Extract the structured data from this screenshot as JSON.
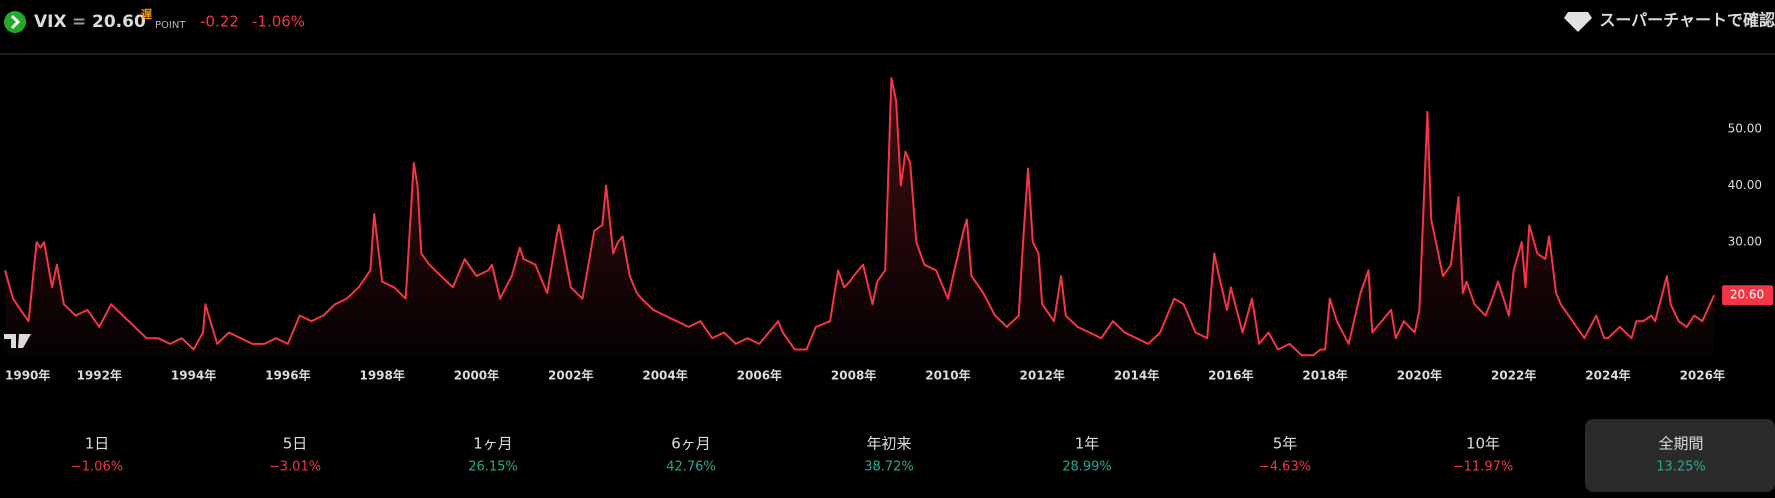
{
  "header": {
    "symbol": "VIX",
    "separator": "=",
    "price": "20.60",
    "delay_badge": "遅",
    "unit": "POINT",
    "change": "-0.22",
    "change_percent": "-1.06%",
    "action": "スーパーチャートで確認"
  },
  "chart_data": {
    "type": "line",
    "color": "#f23645",
    "x": [
      1990.0,
      1990.17,
      1990.33,
      1990.5,
      1990.67,
      1990.75,
      1990.83,
      1991.0,
      1991.1,
      1991.25,
      1991.5,
      1991.75,
      1992.0,
      1992.25,
      1992.5,
      1992.75,
      1993.0,
      1993.25,
      1993.5,
      1993.75,
      1994.0,
      1994.2,
      1994.25,
      1994.5,
      1994.75,
      1995.0,
      1995.25,
      1995.5,
      1995.75,
      1996.0,
      1996.25,
      1996.5,
      1996.75,
      1997.0,
      1997.25,
      1997.5,
      1997.75,
      1997.83,
      1998.0,
      1998.25,
      1998.5,
      1998.67,
      1998.75,
      1998.83,
      1999.0,
      1999.25,
      1999.5,
      1999.75,
      2000.0,
      2000.25,
      2000.33,
      2000.5,
      2000.75,
      2000.92,
      2001.0,
      2001.25,
      2001.5,
      2001.7,
      2001.75,
      2002.0,
      2002.25,
      2002.5,
      2002.67,
      2002.75,
      2002.9,
      2003.0,
      2003.1,
      2003.25,
      2003.4,
      2003.5,
      2003.75,
      2004.0,
      2004.25,
      2004.5,
      2004.75,
      2005.0,
      2005.25,
      2005.5,
      2005.75,
      2006.0,
      2006.4,
      2006.5,
      2006.75,
      2007.0,
      2007.2,
      2007.5,
      2007.67,
      2007.8,
      2007.92,
      2008.0,
      2008.2,
      2008.4,
      2008.5,
      2008.67,
      2008.8,
      2008.9,
      2009.0,
      2009.1,
      2009.2,
      2009.33,
      2009.5,
      2009.75,
      2010.0,
      2010.33,
      2010.4,
      2010.5,
      2010.75,
      2011.0,
      2011.25,
      2011.5,
      2011.6,
      2011.7,
      2011.8,
      2011.92,
      2012.0,
      2012.25,
      2012.4,
      2012.5,
      2012.75,
      2013.0,
      2013.25,
      2013.5,
      2013.75,
      2014.0,
      2014.25,
      2014.5,
      2014.8,
      2015.0,
      2015.25,
      2015.5,
      2015.65,
      2015.75,
      2015.92,
      2016.0,
      2016.25,
      2016.45,
      2016.6,
      2016.8,
      2017.0,
      2017.25,
      2017.5,
      2017.75,
      2017.9,
      2018.0,
      2018.1,
      2018.25,
      2018.5,
      2018.75,
      2018.92,
      2019.0,
      2019.4,
      2019.5,
      2019.67,
      2019.9,
      2020.0,
      2020.17,
      2020.25,
      2020.4,
      2020.5,
      2020.67,
      2020.83,
      2020.92,
      2021.0,
      2021.17,
      2021.4,
      2021.5,
      2021.67,
      2021.9,
      2022.0,
      2022.17,
      2022.25,
      2022.33,
      2022.5,
      2022.67,
      2022.75,
      2022.9,
      2023.0,
      2023.25,
      2023.5,
      2023.75,
      2023.92,
      2024.0,
      2024.25,
      2024.5,
      2024.6,
      2024.75,
      2024.92,
      2025.0,
      2025.25,
      2025.33,
      2025.5,
      2025.67,
      2025.83,
      2026.0,
      2026.25
    ],
    "values": [
      25,
      20,
      18,
      16,
      30,
      29,
      30,
      22,
      26,
      19,
      17,
      18,
      15,
      19,
      17,
      15,
      13,
      13,
      12,
      13,
      11,
      14,
      19,
      12,
      14,
      13,
      12,
      12,
      13,
      12,
      17,
      16,
      17,
      19,
      20,
      22,
      25,
      35,
      23,
      22,
      20,
      44,
      40,
      28,
      26,
      24,
      22,
      27,
      24,
      25,
      26,
      20,
      24,
      29,
      27,
      26,
      21,
      31,
      33,
      22,
      20,
      32,
      33,
      40,
      28,
      30,
      31,
      24,
      21,
      20,
      18,
      17,
      16,
      15,
      16,
      13,
      14,
      12,
      13,
      12,
      16,
      14,
      11,
      11,
      15,
      16,
      25,
      22,
      23,
      24,
      26,
      19,
      23,
      25,
      59,
      55,
      40,
      46,
      44,
      30,
      26,
      25,
      20,
      32,
      34,
      24,
      21,
      17,
      15,
      17,
      31,
      43,
      30,
      28,
      19,
      16,
      24,
      17,
      15,
      14,
      13,
      16,
      14,
      13,
      12,
      14,
      20,
      19,
      14,
      13,
      28,
      24,
      18,
      22,
      14,
      20,
      12,
      14,
      11,
      12,
      10,
      10,
      11,
      11,
      20,
      16,
      12,
      21,
      25,
      14,
      18,
      13,
      16,
      14,
      18,
      53,
      34,
      28,
      24,
      26,
      38,
      21,
      23,
      19,
      17,
      19,
      23,
      17,
      25,
      30,
      22,
      33,
      28,
      27,
      31,
      21,
      19,
      16,
      13,
      17,
      13,
      13,
      15,
      13,
      16,
      16,
      17,
      16,
      24,
      19,
      16,
      15,
      17,
      16,
      20.6
    ],
    "xlim": [
      1990,
      2027.5
    ],
    "ylim": [
      9.5,
      63
    ],
    "xticks": [
      {
        "value": 1990,
        "label": "1990年"
      },
      {
        "value": 1992,
        "label": "1992年"
      },
      {
        "value": 1994,
        "label": "1994年"
      },
      {
        "value": 1996,
        "label": "1996年"
      },
      {
        "value": 1998,
        "label": "1998年"
      },
      {
        "value": 2000,
        "label": "2000年"
      },
      {
        "value": 2002,
        "label": "2002年"
      },
      {
        "value": 2004,
        "label": "2004年"
      },
      {
        "value": 2006,
        "label": "2006年"
      },
      {
        "value": 2008,
        "label": "2008年"
      },
      {
        "value": 2010,
        "label": "2010年"
      },
      {
        "value": 2012,
        "label": "2012年"
      },
      {
        "value": 2014,
        "label": "2014年"
      },
      {
        "value": 2016,
        "label": "2016年"
      },
      {
        "value": 2018,
        "label": "2018年"
      },
      {
        "value": 2020,
        "label": "2020年"
      },
      {
        "value": 2022,
        "label": "2022年"
      },
      {
        "value": 2024,
        "label": "2024年"
      },
      {
        "value": 2026,
        "label": "2026年"
      }
    ],
    "yticks": [
      {
        "value": 30,
        "label": "30.00"
      },
      {
        "value": 40,
        "label": "40.00"
      },
      {
        "value": 50,
        "label": "50.00"
      }
    ]
  },
  "periods": {
    "selected_index": 8,
    "items": [
      {
        "label": "1日",
        "value": "−1.06%",
        "color": "#f23645"
      },
      {
        "label": "5日",
        "value": "−3.01%",
        "color": "#f23645"
      },
      {
        "label": "1ヶ月",
        "value": "26.15%",
        "color": "#22ab94"
      },
      {
        "label": "6ヶ月",
        "value": "42.76%",
        "color": "#22ab94"
      },
      {
        "label": "年初来",
        "value": "38.72%",
        "color": "#22ab94"
      },
      {
        "label": "1年",
        "value": "28.99%",
        "color": "#22ab94"
      },
      {
        "label": "5年",
        "value": "−4.63%",
        "color": "#f23645"
      },
      {
        "label": "10年",
        "value": "−11.97%",
        "color": "#f23645"
      },
      {
        "label": "全期間",
        "value": "13.25%",
        "color": "#22ab94"
      }
    ]
  }
}
